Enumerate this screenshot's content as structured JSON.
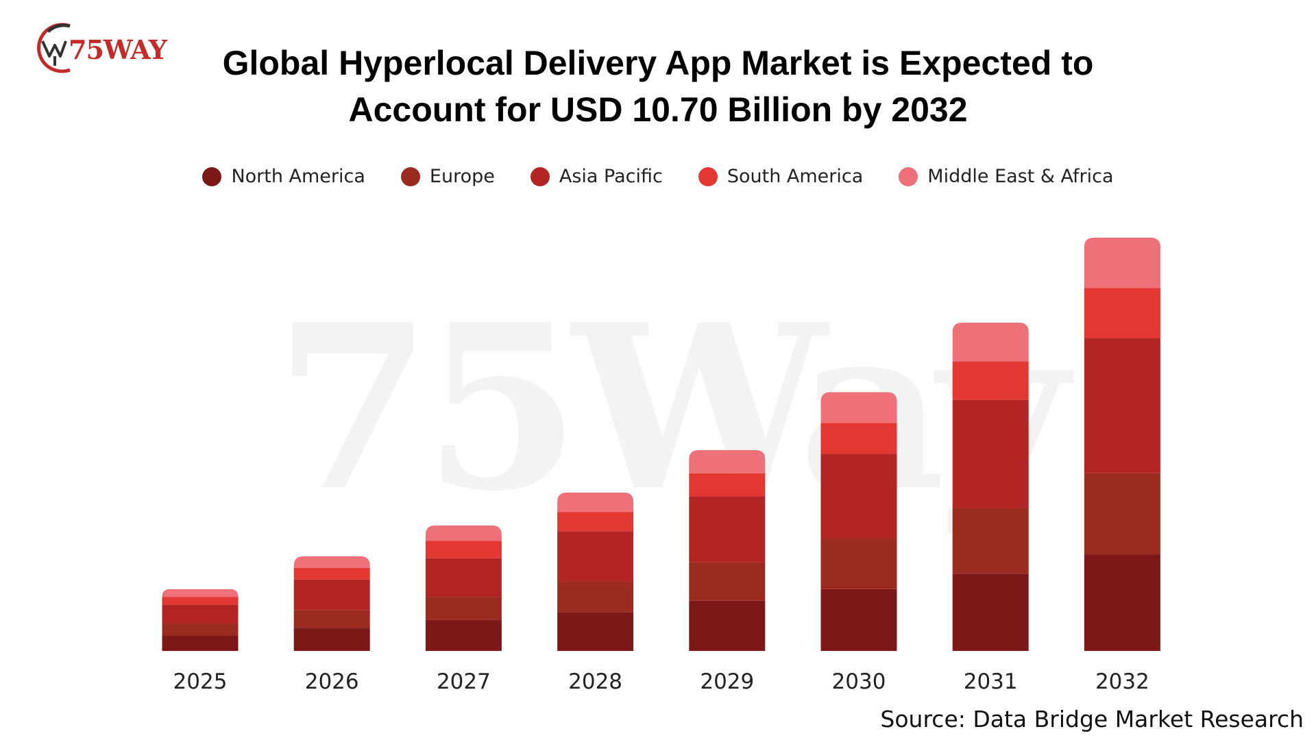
{
  "logo": {
    "text": "75WAY"
  },
  "title_line1": "Global Hyperlocal Delivery App Market is Expected to",
  "title_line2": "Account for USD 10.70 Billion by 2032",
  "watermark": "75Way",
  "source": "Source: Data Bridge Market Research",
  "chart_data": {
    "type": "bar",
    "stacked": true,
    "title": "Global Hyperlocal Delivery App Market is Expected to Account for USD 10.70 Billion by 2032",
    "categories": [
      "2025",
      "2026",
      "2027",
      "2028",
      "2029",
      "2030",
      "2031",
      "2032"
    ],
    "series": [
      {
        "name": "North America",
        "color": "#7d1818",
        "values": [
          0.4,
          0.6,
          0.8,
          1.0,
          1.3,
          1.6,
          2.0,
          2.5
        ]
      },
      {
        "name": "Europe",
        "color": "#9b2a20",
        "values": [
          0.3,
          0.45,
          0.6,
          0.8,
          1.0,
          1.3,
          1.7,
          2.1
        ]
      },
      {
        "name": "Asia Pacific",
        "color": "#b32525",
        "values": [
          0.5,
          0.8,
          1.0,
          1.3,
          1.7,
          2.2,
          2.8,
          3.5
        ]
      },
      {
        "name": "South America",
        "color": "#e33732",
        "values": [
          0.2,
          0.3,
          0.45,
          0.5,
          0.6,
          0.8,
          1.0,
          1.3
        ]
      },
      {
        "name": "Middle East & Africa",
        "color": "#ee7079",
        "values": [
          0.2,
          0.3,
          0.4,
          0.5,
          0.6,
          0.8,
          1.0,
          1.3
        ]
      }
    ],
    "ylim": [
      0,
      11
    ],
    "legend": "top-center",
    "grid": false,
    "xlabel": "",
    "ylabel": ""
  }
}
